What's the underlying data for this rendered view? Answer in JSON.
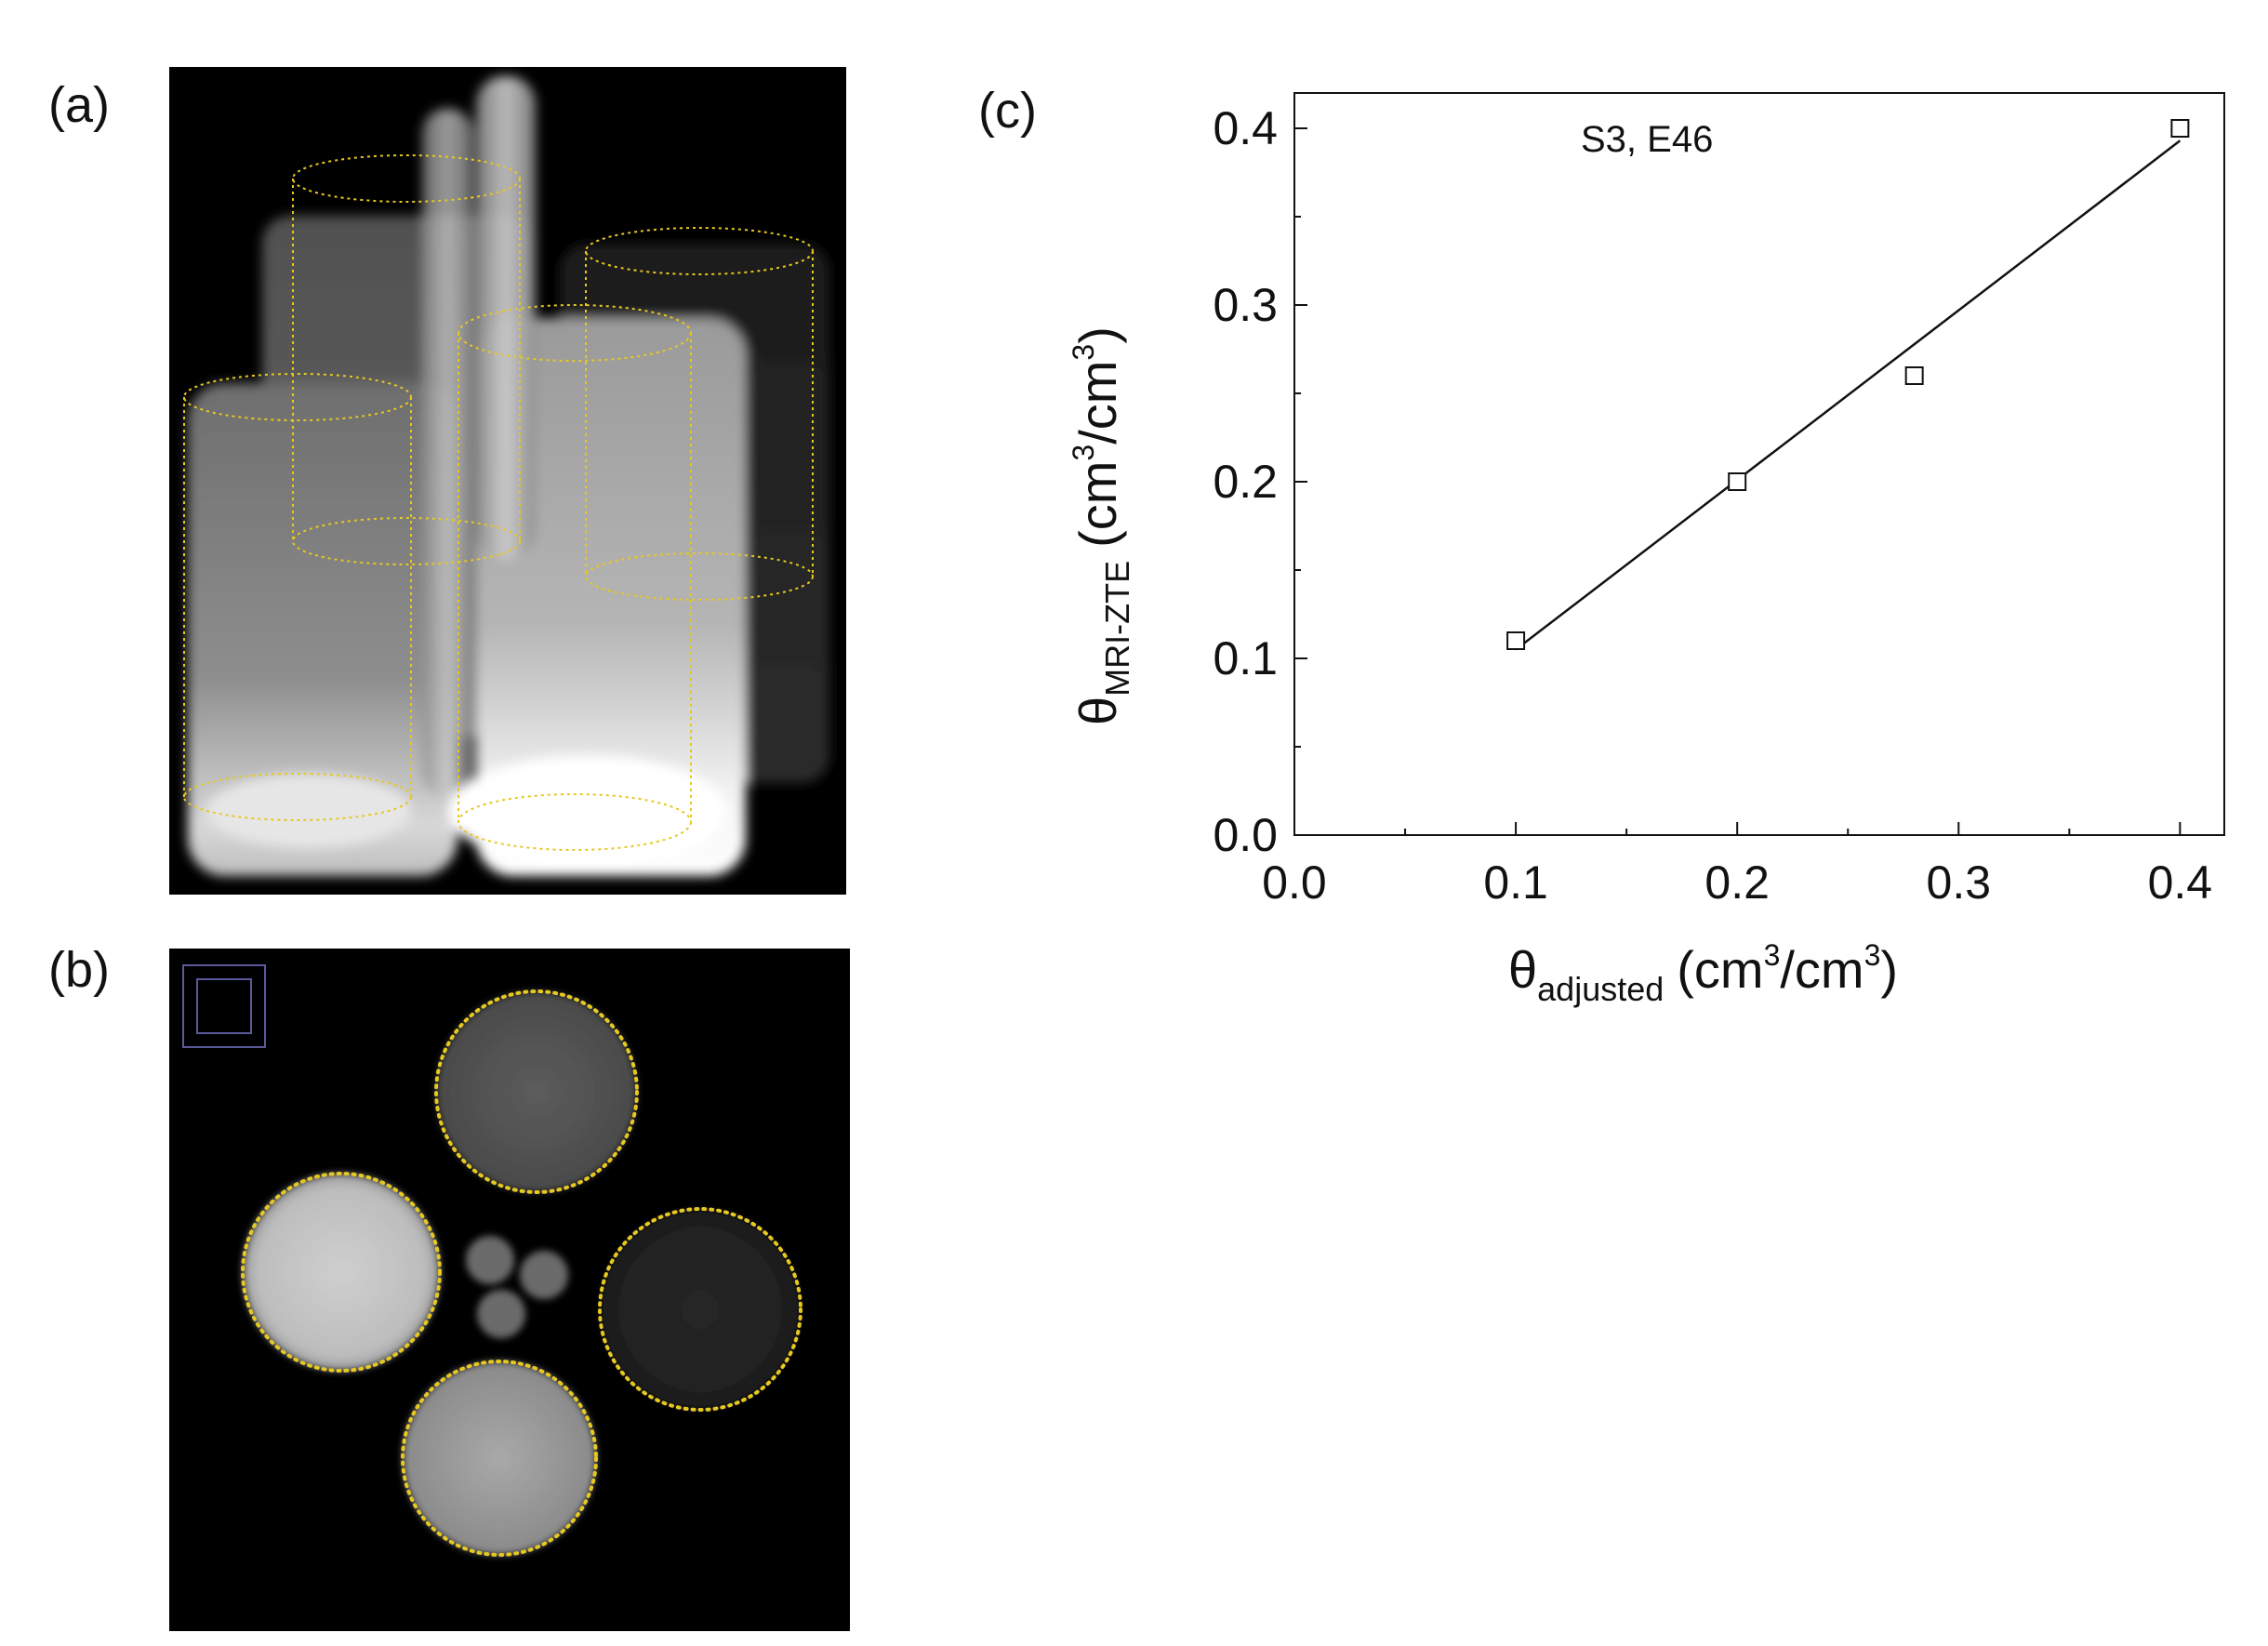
{
  "panel_labels": {
    "a": "(a)",
    "b": "(b)",
    "c": "(c)"
  },
  "colors": {
    "roi_outline": "#e6c820",
    "marker_stroke": "#111111",
    "fit_line": "#111111",
    "reference_box": "#5a5aa0"
  },
  "chart_data": {
    "type": "scatter",
    "annotation": "S3, E46",
    "xlabel": {
      "symbol": "θ",
      "subscript": "adjusted",
      "unit": "(cm",
      "unit_sup": "3",
      "unit_tail": "/cm",
      "unit_sup2": "3",
      "unit_close": ")"
    },
    "ylabel": {
      "symbol": "θ",
      "subscript": "MRI-ZTE",
      "unit": "(cm",
      "unit_sup": "3",
      "unit_tail": "/cm",
      "unit_sup2": "3",
      "unit_close": ")"
    },
    "xlim": [
      0.0,
      0.42
    ],
    "ylim": [
      0.0,
      0.42
    ],
    "x_ticks": [
      "0.0",
      "0.1",
      "0.2",
      "0.3",
      "0.4"
    ],
    "y_ticks": [
      "0.0",
      "0.1",
      "0.2",
      "0.3",
      "0.4"
    ],
    "marker": "open-square",
    "series": [
      {
        "x": [
          0.1,
          0.2,
          0.28,
          0.4
        ],
        "y": [
          0.11,
          0.2,
          0.26,
          0.4
        ]
      }
    ],
    "fit_line": {
      "x": [
        0.1,
        0.4
      ],
      "y": [
        0.105,
        0.393
      ]
    },
    "grid": false,
    "legend": "none"
  }
}
